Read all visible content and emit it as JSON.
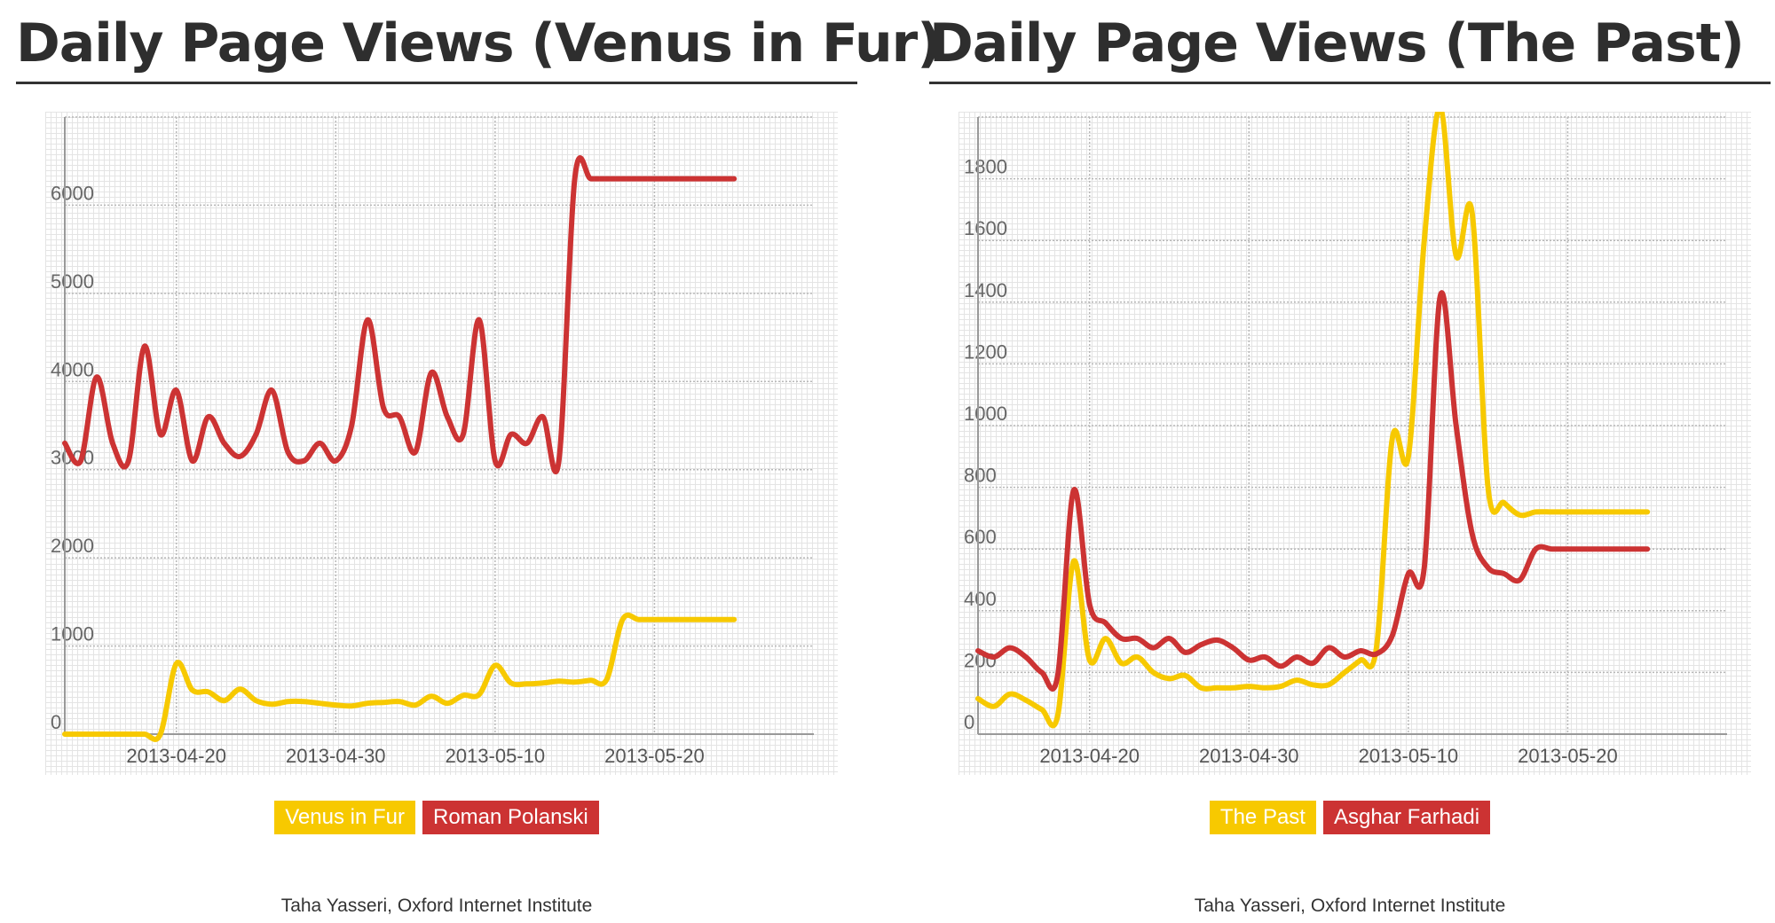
{
  "credit": "Taha Yasseri, Oxford Internet Institute",
  "chart_data": [
    {
      "type": "line",
      "title": "Daily Page Views (Venus in Fur)",
      "x_axis_type": "date",
      "xlim": [
        "2013-04-13",
        "2013-05-30"
      ],
      "x_ticks": [
        "2013-04-20",
        "2013-04-30",
        "2013-05-10",
        "2013-05-20"
      ],
      "ylim": [
        0,
        7000
      ],
      "y_ticks": [
        0,
        1000,
        2000,
        3000,
        4000,
        5000,
        6000,
        7000
      ],
      "grid": true,
      "legend_position": "bottom-center",
      "x": [
        "2013-04-13",
        "2013-04-14",
        "2013-04-15",
        "2013-04-16",
        "2013-04-17",
        "2013-04-18",
        "2013-04-19",
        "2013-04-20",
        "2013-04-21",
        "2013-04-22",
        "2013-04-23",
        "2013-04-24",
        "2013-04-25",
        "2013-04-26",
        "2013-04-27",
        "2013-04-28",
        "2013-04-29",
        "2013-04-30",
        "2013-05-01",
        "2013-05-02",
        "2013-05-03",
        "2013-05-04",
        "2013-05-05",
        "2013-05-06",
        "2013-05-07",
        "2013-05-08",
        "2013-05-09",
        "2013-05-10",
        "2013-05-11",
        "2013-05-12",
        "2013-05-13",
        "2013-05-14",
        "2013-05-15",
        "2013-05-16",
        "2013-05-17",
        "2013-05-18",
        "2013-05-19",
        "2013-05-20",
        "2013-05-21",
        "2013-05-22",
        "2013-05-23",
        "2013-05-24",
        "2013-05-25"
      ],
      "series": [
        {
          "name": "Venus in Fur",
          "color": "#f7c900",
          "values": [
            0,
            0,
            0,
            0,
            0,
            0,
            0,
            800,
            500,
            480,
            380,
            510,
            380,
            340,
            370,
            370,
            350,
            330,
            320,
            350,
            360,
            370,
            330,
            430,
            350,
            440,
            450,
            780,
            580,
            570,
            580,
            600,
            590,
            610,
            620,
            1300,
            1300,
            1300,
            1300,
            1300,
            1300,
            1300,
            1300
          ]
        },
        {
          "name": "Roman Polanski",
          "color": "#cc3333",
          "values": [
            3300,
            3100,
            4050,
            3300,
            3100,
            4400,
            3400,
            3900,
            3100,
            3600,
            3300,
            3150,
            3400,
            3900,
            3200,
            3100,
            3300,
            3100,
            3500,
            4700,
            3700,
            3600,
            3200,
            4100,
            3600,
            3400,
            4700,
            3100,
            3400,
            3300,
            3600,
            3100,
            6300,
            6300,
            6300,
            6300,
            6300,
            6300,
            6300,
            6300,
            6300,
            6300,
            6300
          ]
        }
      ]
    },
    {
      "type": "line",
      "title": "Daily Page Views (The Past)",
      "x_axis_type": "date",
      "xlim": [
        "2013-04-13",
        "2013-05-30"
      ],
      "x_ticks": [
        "2013-04-20",
        "2013-04-30",
        "2013-05-10",
        "2013-05-20"
      ],
      "ylim": [
        0,
        2000
      ],
      "y_ticks": [
        0,
        200,
        400,
        600,
        800,
        1000,
        1200,
        1400,
        1600,
        1800,
        2000
      ],
      "grid": true,
      "legend_position": "bottom-center",
      "x": [
        "2013-04-13",
        "2013-04-14",
        "2013-04-15",
        "2013-04-16",
        "2013-04-17",
        "2013-04-18",
        "2013-04-19",
        "2013-04-20",
        "2013-04-21",
        "2013-04-22",
        "2013-04-23",
        "2013-04-24",
        "2013-04-25",
        "2013-04-26",
        "2013-04-27",
        "2013-04-28",
        "2013-04-29",
        "2013-04-30",
        "2013-05-01",
        "2013-05-02",
        "2013-05-03",
        "2013-05-04",
        "2013-05-05",
        "2013-05-06",
        "2013-05-07",
        "2013-05-08",
        "2013-05-09",
        "2013-05-10",
        "2013-05-11",
        "2013-05-12",
        "2013-05-13",
        "2013-05-14",
        "2013-05-15",
        "2013-05-16",
        "2013-05-17",
        "2013-05-18",
        "2013-05-19",
        "2013-05-20",
        "2013-05-21",
        "2013-05-22",
        "2013-05-23",
        "2013-05-24",
        "2013-05-25"
      ],
      "series": [
        {
          "name": "The Past",
          "color": "#f7c900",
          "values": [
            115,
            90,
            130,
            110,
            80,
            60,
            560,
            240,
            310,
            230,
            250,
            200,
            180,
            190,
            150,
            150,
            150,
            155,
            150,
            155,
            175,
            160,
            160,
            200,
            240,
            280,
            960,
            900,
            1600,
            2030,
            1550,
            1690,
            800,
            750,
            710,
            720,
            720,
            720,
            720,
            720,
            720,
            720,
            720
          ]
        },
        {
          "name": "Asghar Farhadi",
          "color": "#cc3333",
          "values": [
            270,
            250,
            280,
            250,
            200,
            190,
            790,
            420,
            360,
            310,
            310,
            280,
            310,
            265,
            290,
            305,
            280,
            240,
            250,
            220,
            250,
            230,
            280,
            250,
            270,
            260,
            320,
            520,
            540,
            1420,
            1000,
            650,
            540,
            520,
            500,
            600,
            600,
            600,
            600,
            600,
            600,
            600,
            600
          ]
        }
      ]
    }
  ]
}
